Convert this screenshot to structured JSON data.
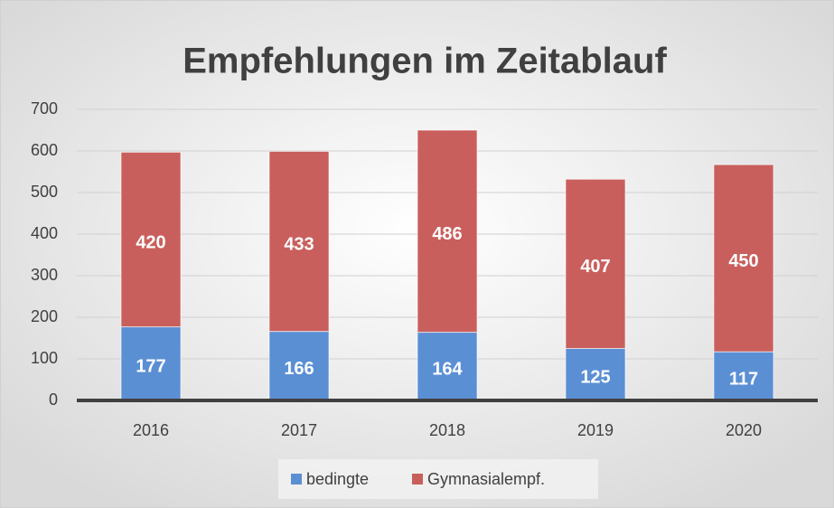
{
  "chart_data": {
    "type": "stacked_bar",
    "title": "Empfehlungen im Zeitablauf",
    "categories": [
      "2016",
      "2017",
      "2018",
      "2019",
      "2020"
    ],
    "series": [
      {
        "name": "bedingte",
        "color": "#5b8fd4",
        "values": [
          177,
          166,
          164,
          125,
          117
        ]
      },
      {
        "name": "Gymnasialempf.",
        "color": "#c95f5c",
        "values": [
          420,
          433,
          486,
          407,
          450
        ]
      }
    ],
    "ylim": [
      0,
      700
    ],
    "yticks": [
      0,
      100,
      200,
      300,
      400,
      500,
      600,
      700
    ],
    "grid": true,
    "legend": "bottom"
  }
}
